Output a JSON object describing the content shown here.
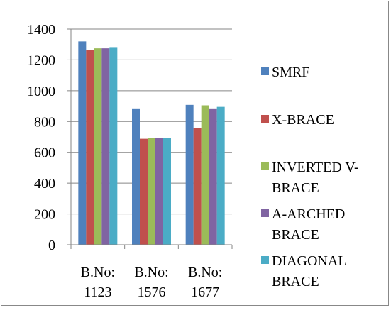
{
  "chart_data": {
    "type": "bar",
    "categories": [
      [
        "B.No:",
        "1123"
      ],
      [
        "B.No:",
        "1576"
      ],
      [
        "B.No:",
        "1677"
      ]
    ],
    "series": [
      {
        "name": [
          "SMRF"
        ],
        "values": [
          1320,
          885,
          908
        ],
        "color": "#4F81BD"
      },
      {
        "name": [
          "X-BRACE"
        ],
        "values": [
          1265,
          688,
          758
        ],
        "color": "#C0504D"
      },
      {
        "name": [
          "INVERTED V-",
          "BRACE"
        ],
        "values": [
          1275,
          692,
          905
        ],
        "color": "#9BBB59"
      },
      {
        "name": [
          "A-ARCHED",
          "BRACE"
        ],
        "values": [
          1275,
          693,
          885
        ],
        "color": "#8064A2"
      },
      {
        "name": [
          "DIAGONAL",
          "BRACE"
        ],
        "values": [
          1283,
          693,
          895
        ],
        "color": "#4BACC6"
      }
    ],
    "ylim": [
      0,
      1400
    ],
    "yticks": [
      "0",
      "200",
      "400",
      "600",
      "800",
      "1000",
      "1200",
      "1400"
    ],
    "grid": true,
    "legend_position": "right"
  }
}
